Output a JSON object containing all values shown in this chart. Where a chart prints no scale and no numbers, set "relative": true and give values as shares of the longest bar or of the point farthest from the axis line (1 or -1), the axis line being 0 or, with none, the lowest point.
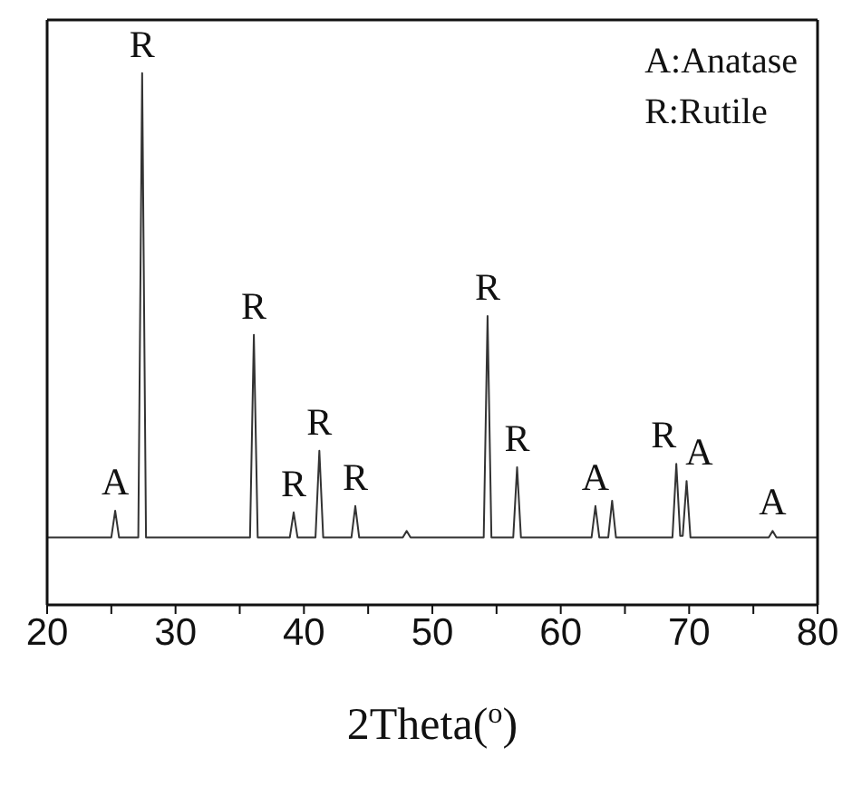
{
  "chart_data": {
    "type": "line",
    "xlabel": "2Theta($^{o}$)",
    "relative": true,
    "legend": false,
    "grid": false,
    "marker": "none",
    "line_style": "solid",
    "xlim": [
      20,
      80
    ],
    "xticks": [
      20,
      {
        "value": 25,
        "label": null
      },
      30,
      {
        "value": 35,
        "label": null
      },
      40,
      {
        "value": 45,
        "label": null
      },
      50,
      {
        "value": 55,
        "label": null
      },
      60,
      {
        "value": 65,
        "label": null
      },
      70,
      {
        "value": 75,
        "label": null
      },
      80
    ],
    "series": [
      {
        "color": "#333333",
        "x": [
          20,
          25.0,
          25.3,
          25.6,
          27.1,
          27.4,
          27.7,
          35.8,
          36.1,
          36.4,
          38.9,
          39.2,
          39.5,
          40.9,
          41.2,
          41.5,
          43.7,
          44.0,
          44.3,
          47.7,
          48.0,
          48.3,
          54.0,
          54.3,
          54.6,
          56.3,
          56.6,
          56.9,
          62.4,
          62.7,
          63.0,
          63.7,
          64.0,
          64.3,
          68.7,
          69.0,
          69.3,
          69.5,
          69.8,
          70.1,
          76.2,
          76.5,
          76.8,
          80
        ],
        "values": [
          0.127,
          0.127,
          0.177,
          0.127,
          0.127,
          1.0,
          0.127,
          0.127,
          0.508,
          0.127,
          0.127,
          0.174,
          0.127,
          0.127,
          0.29,
          0.127,
          0.127,
          0.186,
          0.127,
          0.127,
          0.139,
          0.127,
          0.127,
          0.543,
          0.127,
          0.127,
          0.259,
          0.127,
          0.127,
          0.186,
          0.127,
          0.127,
          0.196,
          0.127,
          0.127,
          0.265,
          0.13,
          0.13,
          0.233,
          0.127,
          0.127,
          0.139,
          0.127,
          0.127
        ]
      }
    ],
    "annotations": [
      "A:Anatase",
      "R:Rutile",
      {
        "text": "A",
        "x": 25.3,
        "y": 0.177
      },
      {
        "text": "R",
        "x": 27.4,
        "y": 1.0
      },
      {
        "text": "R",
        "x": 36.1,
        "y": 0.508
      },
      {
        "text": "R",
        "x": 39.2,
        "y": 0.174
      },
      {
        "text": "R",
        "x": 41.2,
        "y": 0.29
      },
      {
        "text": "R",
        "x": 44.0,
        "y": 0.186
      },
      {
        "text": "R",
        "x": 54.3,
        "y": 0.543
      },
      {
        "text": "R",
        "x": 56.6,
        "y": 0.259
      },
      {
        "text": "A",
        "x": 62.7,
        "y": 0.186
      },
      {
        "text": "R",
        "x": 69.0,
        "y": 0.265
      },
      {
        "text": "A",
        "x": 69.8,
        "y": 0.233
      },
      {
        "text": "A",
        "x": 76.5,
        "y": 0.139
      }
    ]
  }
}
